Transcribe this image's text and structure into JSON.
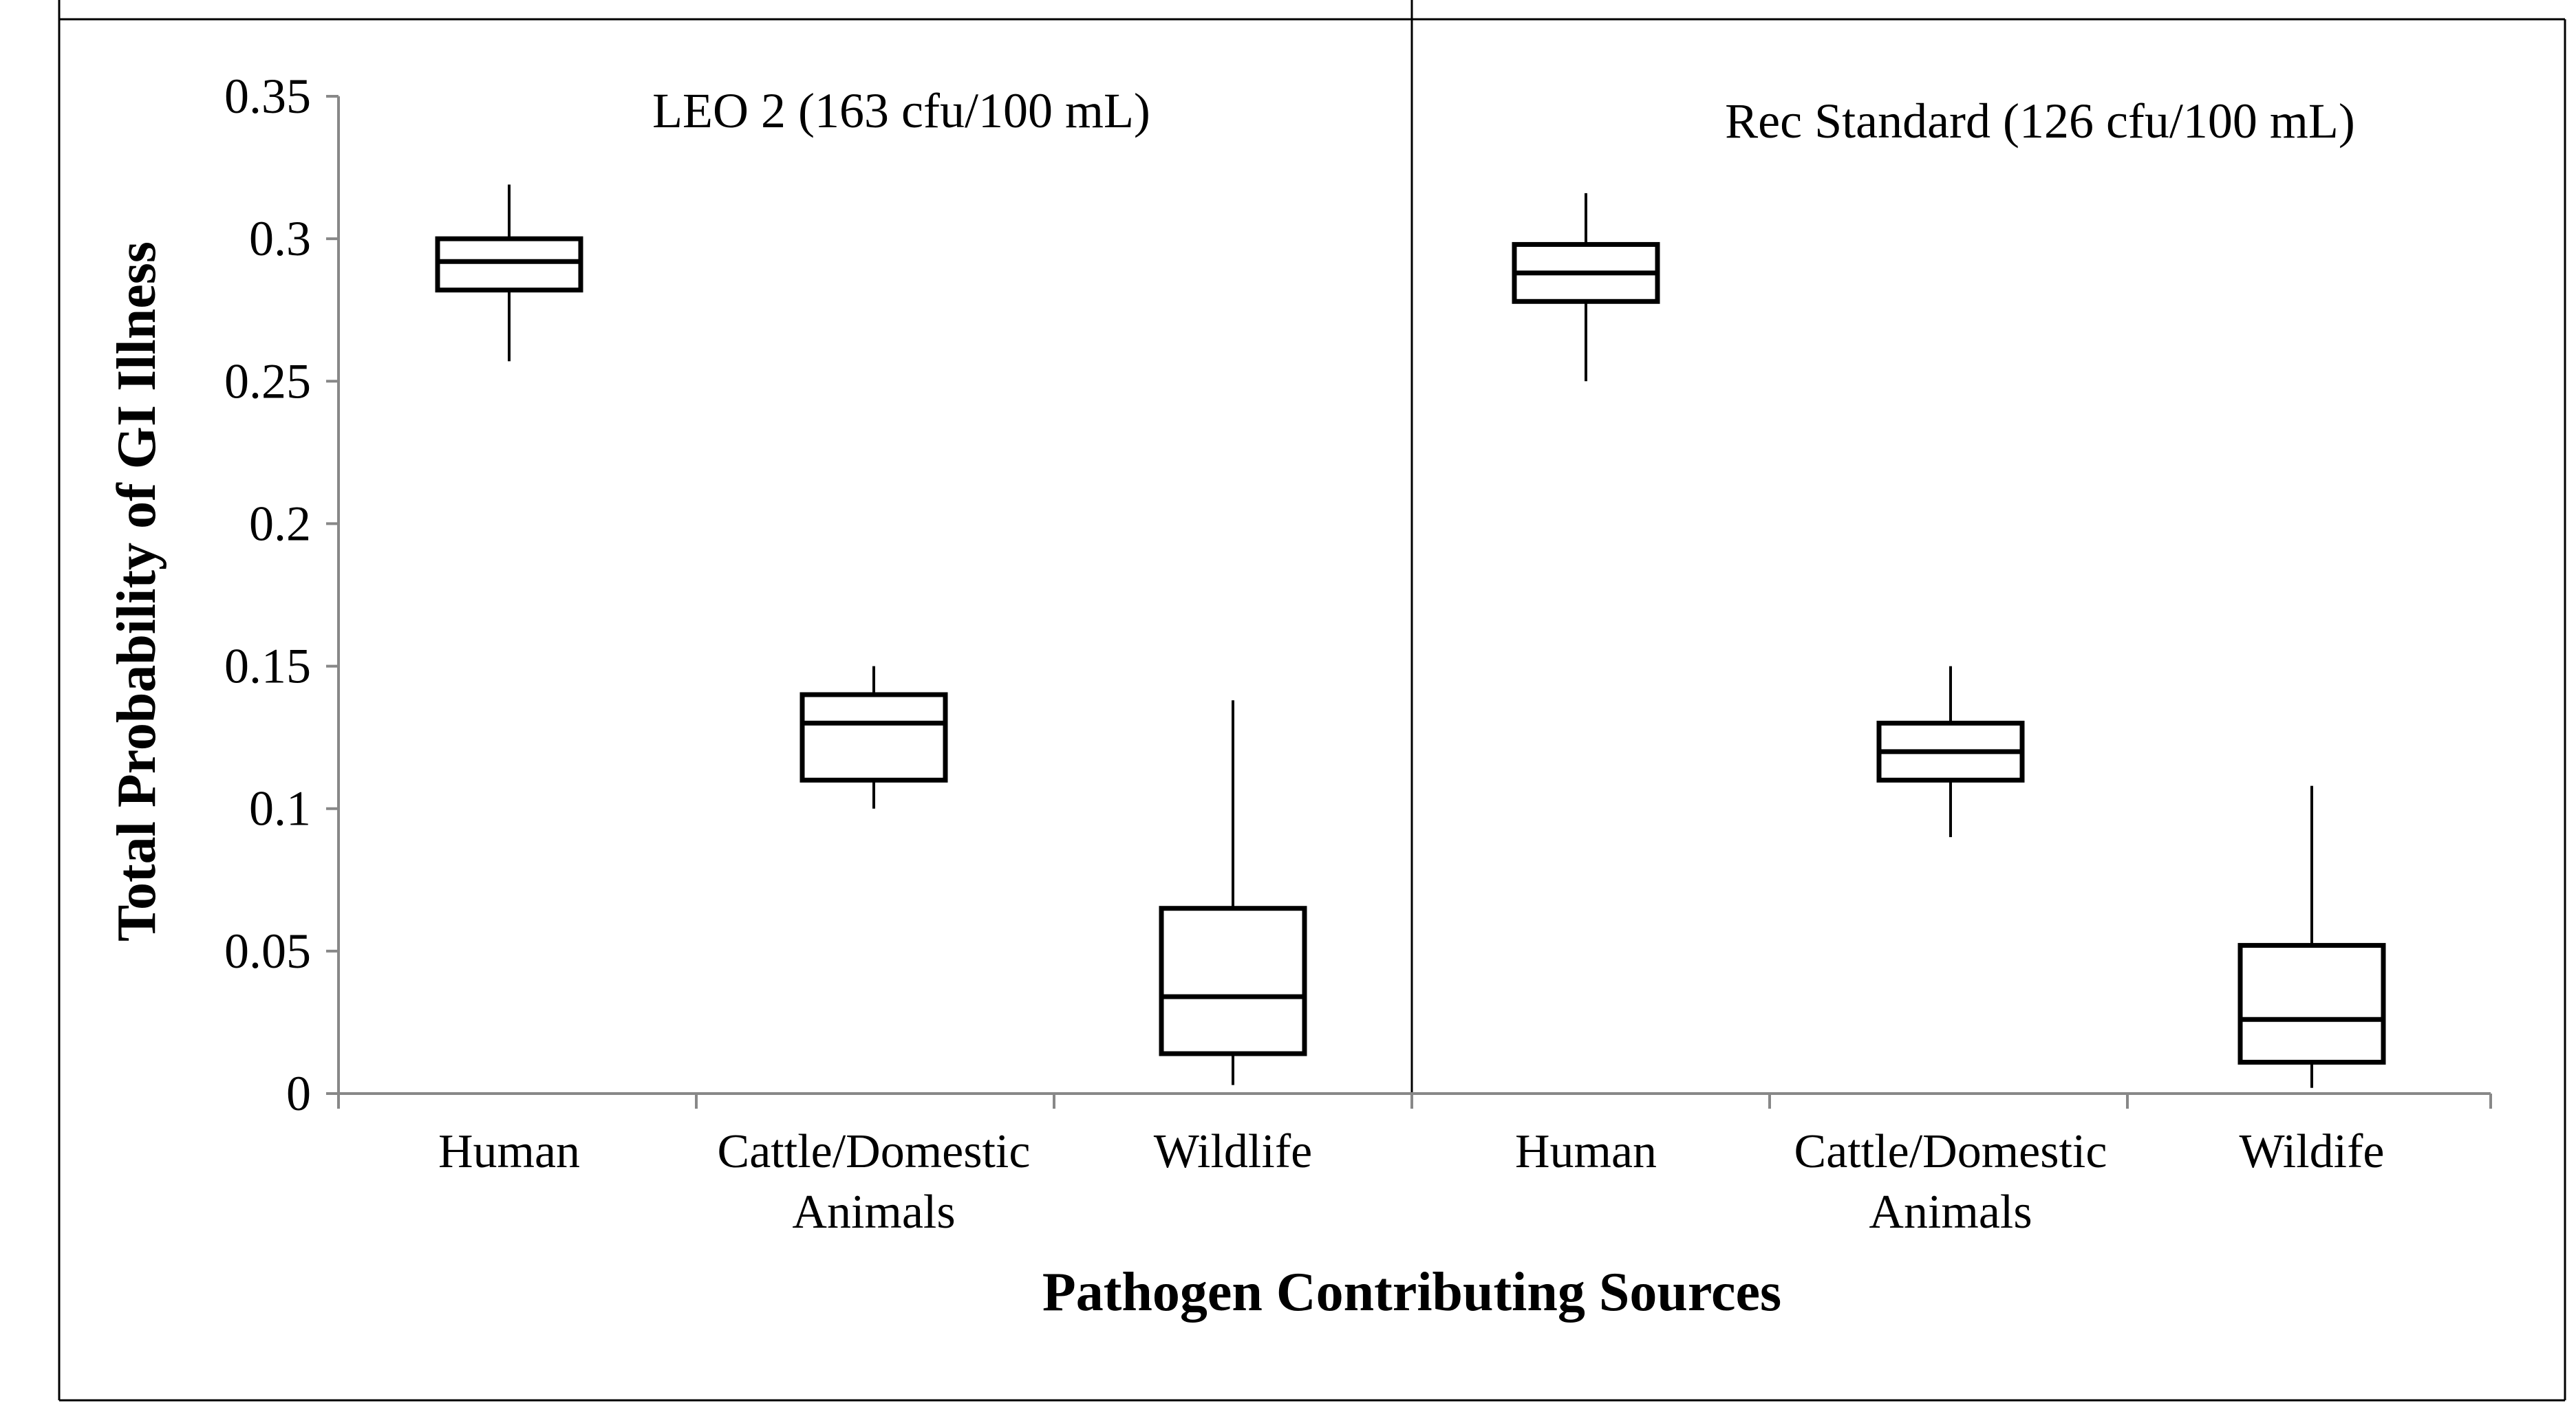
{
  "chart_data": {
    "type": "boxplot",
    "ylabel": "Total Probability of GI Illness",
    "xlabel": "Pathogen Contributing Sources",
    "ylim": [
      0,
      0.35
    ],
    "yticks": [
      "0",
      "0.05",
      "0.1",
      "0.15",
      "0.2",
      "0.25",
      "0.3",
      "0.35"
    ],
    "yticks_values": [
      0,
      0.05,
      0.1,
      0.15,
      0.2,
      0.25,
      0.3,
      0.35
    ],
    "panels": [
      {
        "title": "LEO 2 (163 cfu/100 mL)",
        "categories": [
          {
            "label_lines": [
              "Human"
            ],
            "whisker_low": 0.257,
            "q1": 0.282,
            "median": 0.292,
            "q3": 0.3,
            "whisker_high": 0.319
          },
          {
            "label_lines": [
              "Cattle/Domestic",
              "Animals"
            ],
            "whisker_low": 0.1,
            "q1": 0.11,
            "median": 0.13,
            "q3": 0.14,
            "whisker_high": 0.15
          },
          {
            "label_lines": [
              "Wildlife"
            ],
            "whisker_low": 0.003,
            "q1": 0.014,
            "median": 0.034,
            "q3": 0.065,
            "whisker_high": 0.138
          }
        ]
      },
      {
        "title": "Rec Standard (126 cfu/100 mL)",
        "categories": [
          {
            "label_lines": [
              "Human"
            ],
            "whisker_low": 0.25,
            "q1": 0.278,
            "median": 0.288,
            "q3": 0.298,
            "whisker_high": 0.316
          },
          {
            "label_lines": [
              "Cattle/Domestic",
              "Animals"
            ],
            "whisker_low": 0.09,
            "q1": 0.11,
            "median": 0.12,
            "q3": 0.13,
            "whisker_high": 0.15
          },
          {
            "label_lines": [
              "Wildife"
            ],
            "whisker_low": 0.002,
            "q1": 0.011,
            "median": 0.026,
            "q3": 0.052,
            "whisker_high": 0.108
          }
        ]
      }
    ]
  }
}
